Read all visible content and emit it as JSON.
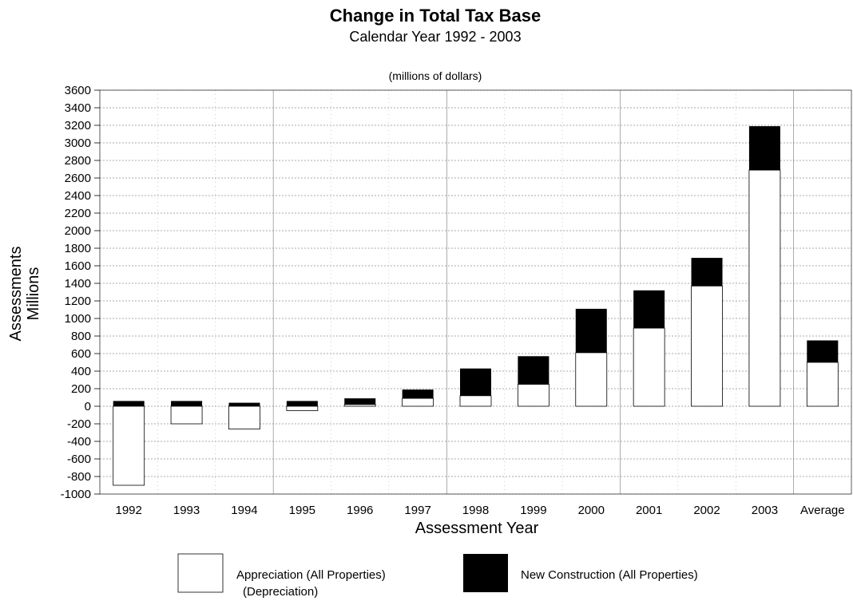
{
  "chart_data": {
    "type": "bar",
    "stacked": true,
    "title": "Change in Total Tax Base",
    "subtitle": "Calendar Year 1992 - 2003",
    "units_note": "(millions of dollars)",
    "xlabel": "Assessment Year",
    "ylabel": [
      "Assessments",
      "Millions"
    ],
    "ylim": [
      -1000,
      3600
    ],
    "yticks": [
      3600,
      3400,
      3200,
      3000,
      2800,
      2600,
      2400,
      2200,
      2000,
      1800,
      1600,
      1400,
      1200,
      1000,
      800,
      600,
      400,
      200,
      0,
      -200,
      -400,
      -600,
      -800,
      -1000
    ],
    "ytick_labels": [
      "3600",
      "3400",
      "3200",
      "3000",
      "2800",
      "2600",
      "2400",
      "2200",
      "2000",
      "1800",
      "1600",
      "1400",
      "1200",
      "1000",
      "800",
      "600",
      "400",
      "200",
      "0",
      "-200",
      "-400",
      "-600",
      "-800",
      "-1000"
    ],
    "categories": [
      "1992",
      "1993",
      "1994",
      "1995",
      "1996",
      "1997",
      "1998",
      "1999",
      "2000",
      "2001",
      "2002",
      "2003",
      "Average"
    ],
    "series": [
      {
        "name": "Appreciation (All Properties)",
        "name_line2": "(Depreciation)",
        "color": "#ffffff",
        "values": [
          -900,
          -200,
          -260,
          -50,
          20,
          90,
          120,
          250,
          610,
          890,
          1370,
          2690,
          500
        ]
      },
      {
        "name": "New Construction (All Properties)",
        "color": "#000000",
        "values": [
          60,
          60,
          40,
          60,
          70,
          100,
          310,
          320,
          500,
          430,
          320,
          500,
          250
        ]
      }
    ],
    "grid": true,
    "legend_position": "bottom"
  }
}
